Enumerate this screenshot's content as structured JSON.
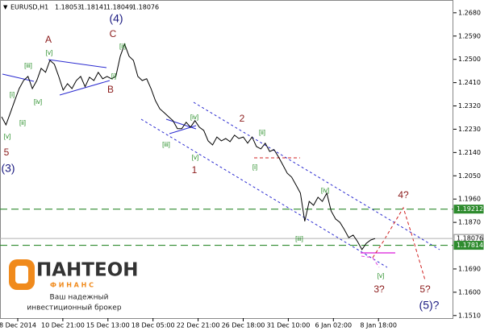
{
  "chart_data": {
    "type": "line",
    "symbol": "EURUSD,H1",
    "ohlc": [
      1.18053,
      1.18141,
      1.18049,
      1.18076
    ],
    "ylim": [
      1.15,
      1.272
    ],
    "yticks": [
      {
        "value": 1.268,
        "label": "1.2680"
      },
      {
        "value": 1.259,
        "label": "1.2590"
      },
      {
        "value": 1.25,
        "label": "1.2500"
      },
      {
        "value": 1.241,
        "label": "1.2410"
      },
      {
        "value": 1.232,
        "label": "1.2320"
      },
      {
        "value": 1.223,
        "label": "1.2230"
      },
      {
        "value": 1.214,
        "label": "1.2140"
      },
      {
        "value": 1.205,
        "label": "1.2050"
      },
      {
        "value": 1.196,
        "label": "1.1960"
      },
      {
        "value": 1.187,
        "label": "1.1870"
      },
      {
        "value": 1.169,
        "label": "1.1690"
      },
      {
        "value": 1.16,
        "label": "1.1600"
      },
      {
        "value": 1.151,
        "label": "1.1510"
      }
    ],
    "xtick_labels": [
      "8 Dec 2014",
      "10 Dec 21:00",
      "15 Dec 13:00",
      "18 Dec 05:00",
      "22 Dec 21:00",
      "26 Dec 18:00",
      "31 Dec 10:00",
      "6 Jan 02:00",
      "8 Jan 18:00"
    ],
    "color": "#000000",
    "values": [
      1.2278,
      1.2247,
      1.2294,
      1.2341,
      1.2387,
      1.2418,
      1.2434,
      1.2387,
      1.2418,
      1.2465,
      1.245,
      1.2496,
      1.2481,
      1.2434,
      1.2381,
      1.2406,
      1.2387,
      1.2418,
      1.2434,
      1.2394,
      1.2431,
      1.2418,
      1.245,
      1.2425,
      1.2434,
      1.2425,
      1.2434,
      1.2512,
      1.2559,
      1.2512,
      1.2496,
      1.2434,
      1.2418,
      1.2425,
      1.2387,
      1.2341,
      1.2309,
      1.2294,
      1.2278,
      1.2263,
      1.2232,
      1.2232,
      1.2257,
      1.2238,
      1.2263,
      1.2238,
      1.2225,
      1.2185,
      1.2169,
      1.22,
      1.2185,
      1.2194,
      1.2182,
      1.2207,
      1.2194,
      1.22,
      1.2176,
      1.22,
      1.2163,
      1.2154,
      1.2176,
      1.2144,
      1.2151,
      1.2123,
      1.2092,
      1.206,
      1.2045,
      1.2014,
      1.1983,
      1.1874,
      1.1951,
      1.1936,
      1.1967,
      1.1951,
      1.1983,
      1.1914,
      1.1883,
      1.187,
      1.1842,
      1.1811,
      1.1821,
      1.1796,
      1.1765,
      1.1789,
      1.1802,
      1.18076
    ],
    "levels": [
      {
        "value": 1.19212,
        "color": "#2e8b2e",
        "dashed": true,
        "box": "#2e8b2e"
      },
      {
        "value": 1.18076,
        "color": "#b0b0b0",
        "dashed": false,
        "box": "#ffffff"
      },
      {
        "value": 1.17814,
        "color": "#2e8b2e",
        "dashed": true,
        "box": "#2e8b2e"
      }
    ],
    "wave_labels": [
      {
        "text": "5",
        "color": "#8b1a1a"
      },
      {
        "text": "(3)",
        "color": "#1a1a80"
      },
      {
        "text": "A",
        "color": "#8b1a1a"
      },
      {
        "text": "(4)",
        "color": "#1a1a80"
      },
      {
        "text": "C",
        "color": "#8b1a1a"
      },
      {
        "text": "B",
        "color": "#8b1a1a"
      },
      {
        "text": "1",
        "color": "#8b1a1a"
      },
      {
        "text": "2",
        "color": "#8b1a1a"
      },
      {
        "text": "4?",
        "color": "#8b1a1a"
      },
      {
        "text": "5?",
        "color": "#8b1a1a"
      },
      {
        "text": "(5)?",
        "color": "#1a1a80"
      },
      {
        "text": "3?",
        "color": "#8b1a1a"
      },
      {
        "text": "[v]",
        "color": "#228b22"
      },
      {
        "text": "[i]",
        "color": "#228b22"
      },
      {
        "text": "[ii]",
        "color": "#228b22"
      },
      {
        "text": "[iii]",
        "color": "#228b22"
      },
      {
        "text": "[iv]",
        "color": "#228b22"
      },
      {
        "text": "[v]",
        "color": "#228b22"
      },
      {
        "text": "[i]",
        "color": "#228b22"
      },
      {
        "text": "[ii]",
        "color": "#228b22"
      },
      {
        "text": "[iii]",
        "color": "#228b22"
      },
      {
        "text": "[iv]",
        "color": "#228b22"
      },
      {
        "text": "[v]",
        "color": "#228b22"
      },
      {
        "text": "[i]",
        "color": "#228b22"
      },
      {
        "text": "[ii]",
        "color": "#228b22"
      },
      {
        "text": "[iii]",
        "color": "#228b22"
      },
      {
        "text": "[iv]",
        "color": "#228b22"
      },
      {
        "text": "[v]",
        "color": "#228b22"
      }
    ]
  },
  "logo": {
    "name": "ПАНТЕОН",
    "sub": "Ф И Н А Н С",
    "tagline": [
      "Ваш надежный",
      "инвестиционный брокер"
    ]
  }
}
